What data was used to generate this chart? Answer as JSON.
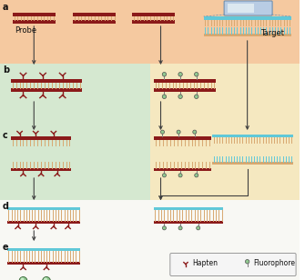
{
  "bg_top": "#f5c9a0",
  "bg_left": "#d5e8d0",
  "bg_right": "#f5e8c0",
  "bg_main": "#ffffff",
  "dna_red": "#8b1a1a",
  "dna_red2": "#a52020",
  "dna_cyan": "#60c8d8",
  "dna_tan": "#d8a870",
  "arrow_color": "#404040",
  "text_color": "#111111",
  "label_a": "a",
  "label_b": "b",
  "label_c": "c",
  "label_d": "d",
  "label_e": "e",
  "probe_label": "Probe",
  "target_label": "Target",
  "hapten_label": "Hapten",
  "fluoro_label": "Fluorophore",
  "hapten_color": "#8b1a1a",
  "fluoro_color": "#90c890",
  "fluoro_stem": "#808080"
}
